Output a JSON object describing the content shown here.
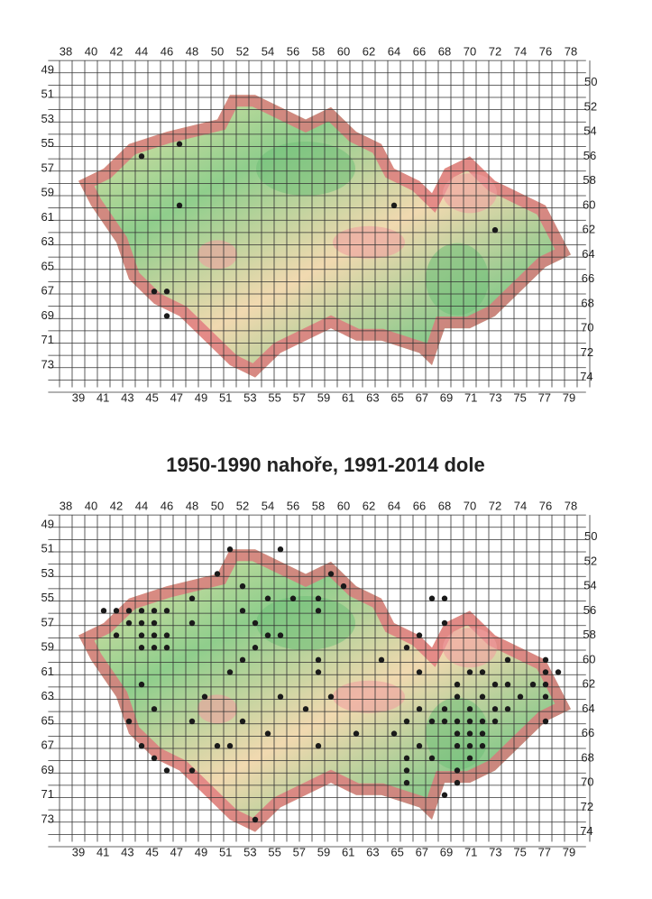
{
  "title": "1950-1990 nahoře, 1991-2014 dole",
  "maps": [
    {
      "top": [
        38,
        40,
        42,
        44,
        46,
        48,
        50,
        52,
        54,
        56,
        58,
        60,
        62,
        64,
        66,
        68,
        70,
        72,
        74,
        76,
        78
      ],
      "bottom": [
        39,
        41,
        43,
        45,
        47,
        49,
        51,
        53,
        55,
        57,
        59,
        61,
        63,
        65,
        67,
        69,
        71,
        73,
        75,
        77,
        79
      ],
      "left": [
        49,
        51,
        53,
        55,
        57,
        59,
        61,
        63,
        65,
        67,
        69,
        71,
        73
      ],
      "right": [
        50,
        52,
        54,
        56,
        58,
        60,
        62,
        64,
        66,
        68,
        70,
        72,
        74
      ]
    },
    {
      "top": [
        38,
        40,
        42,
        44,
        46,
        48,
        50,
        52,
        54,
        56,
        58,
        60,
        62,
        64,
        66,
        68,
        70,
        72,
        74,
        76,
        78
      ],
      "bottom": [
        39,
        41,
        43,
        45,
        47,
        49,
        51,
        53,
        55,
        57,
        59,
        61,
        63,
        65,
        67,
        69,
        71,
        73,
        75,
        77,
        79
      ],
      "left": [
        49,
        51,
        53,
        55,
        57,
        59,
        61,
        63,
        65,
        67,
        69,
        71,
        73
      ],
      "right": [
        50,
        52,
        54,
        56,
        58,
        60,
        62,
        64,
        66,
        68,
        70,
        72,
        74
      ]
    }
  ]
}
